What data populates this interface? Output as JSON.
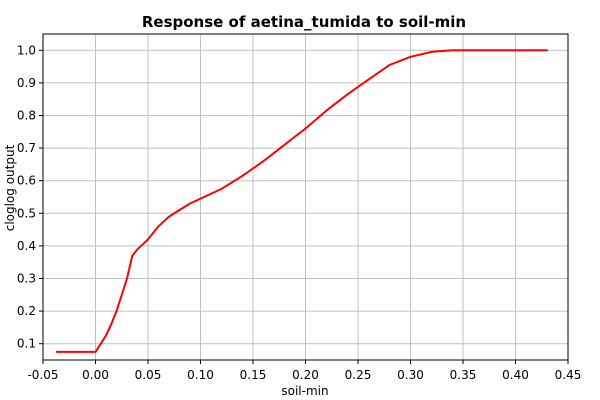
{
  "chart_data": {
    "type": "line",
    "title": "Response of aetina_tumida to soil-min",
    "xlabel": "soil-min",
    "ylabel": "cloglog output",
    "xlim": [
      -0.05,
      0.45
    ],
    "ylim": [
      0.05,
      1.05
    ],
    "xticks": [
      -0.05,
      0.0,
      0.05,
      0.1,
      0.15,
      0.2,
      0.25,
      0.3,
      0.35,
      0.4,
      0.45
    ],
    "xtick_labels": [
      "-0.05",
      "0.00",
      "0.05",
      "0.10",
      "0.15",
      "0.20",
      "0.25",
      "0.30",
      "0.35",
      "0.40",
      "0.45"
    ],
    "yticks": [
      0.1,
      0.2,
      0.3,
      0.4,
      0.5,
      0.6,
      0.7,
      0.8,
      0.9,
      1.0
    ],
    "ytick_labels": [
      "0.1",
      "0.2",
      "0.3",
      "0.4",
      "0.5",
      "0.6",
      "0.7",
      "0.8",
      "0.9",
      "1.0"
    ],
    "grid": true,
    "series": [
      {
        "color": "#ff0000",
        "x": [
          -0.037,
          0.0,
          0.005,
          0.01,
          0.015,
          0.02,
          0.025,
          0.03,
          0.035,
          0.04,
          0.045,
          0.05,
          0.06,
          0.07,
          0.08,
          0.09,
          0.1,
          0.12,
          0.14,
          0.16,
          0.18,
          0.2,
          0.22,
          0.24,
          0.26,
          0.28,
          0.3,
          0.32,
          0.34,
          0.36,
          0.38,
          0.4,
          0.43
        ],
        "y": [
          0.075,
          0.075,
          0.1,
          0.125,
          0.16,
          0.2,
          0.25,
          0.3,
          0.37,
          0.39,
          0.405,
          0.42,
          0.46,
          0.49,
          0.51,
          0.53,
          0.545,
          0.575,
          0.615,
          0.66,
          0.71,
          0.76,
          0.815,
          0.865,
          0.91,
          0.955,
          0.98,
          0.995,
          1.0,
          1.0,
          1.0,
          1.0,
          1.0
        ]
      }
    ]
  }
}
